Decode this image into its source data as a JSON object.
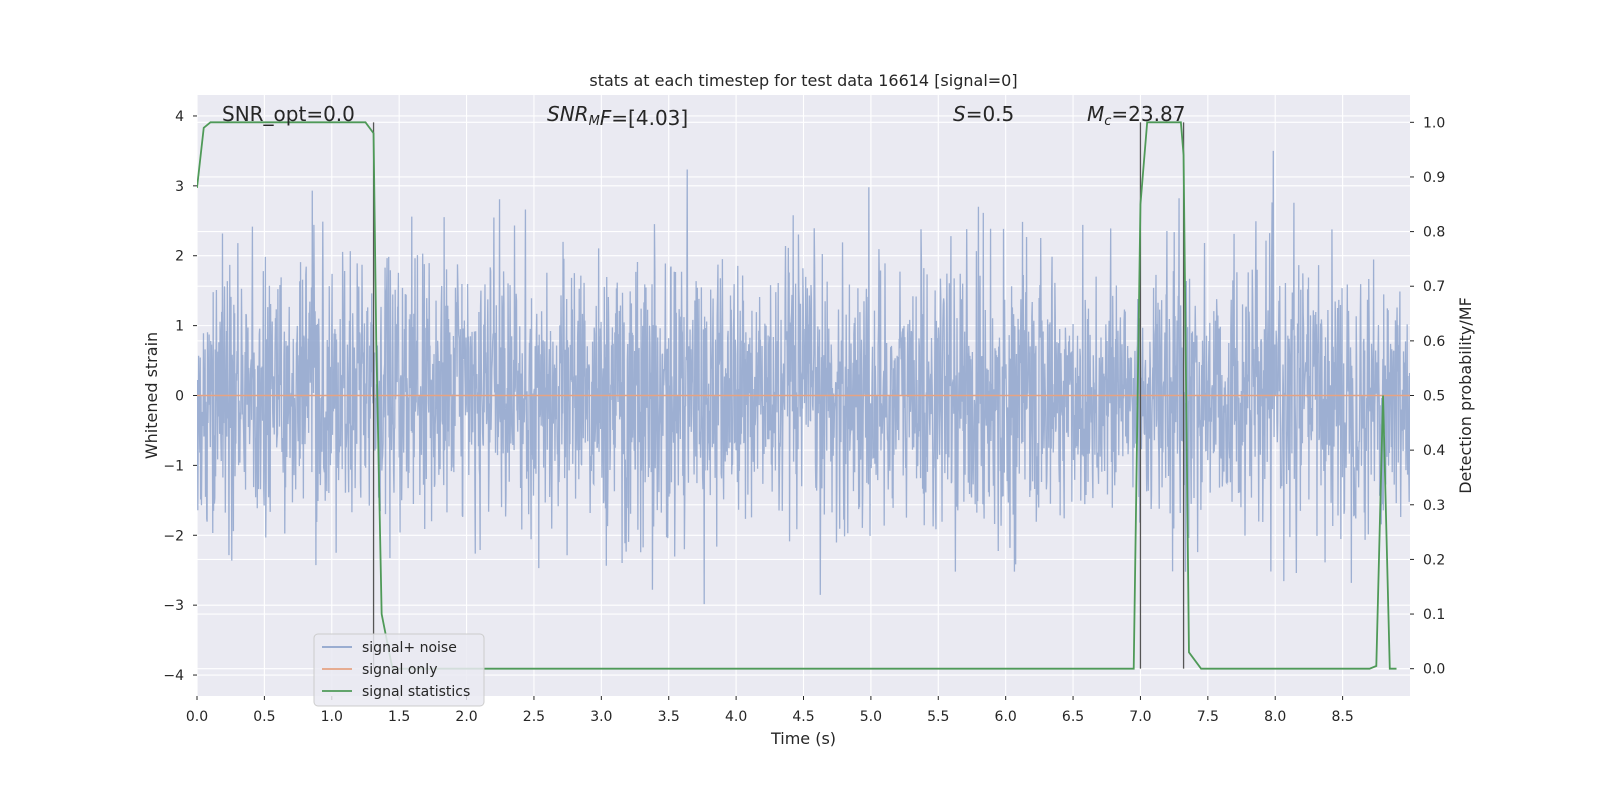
{
  "chart_data": {
    "type": "line",
    "title": "stats at each timestep for test data 16614 [signal=0]",
    "xlabel": "Time (s)",
    "ylabel": "Whitened strain",
    "y2label": "Detection probability/MF",
    "xlim": [
      0.0,
      9.0
    ],
    "ylim": [
      -4.3,
      4.3
    ],
    "y2lim": [
      -0.05,
      1.05
    ],
    "x_ticks": [
      "0.0",
      "0.5",
      "1.0",
      "1.5",
      "2.0",
      "2.5",
      "3.0",
      "3.5",
      "4.0",
      "4.5",
      "5.0",
      "5.5",
      "6.0",
      "6.5",
      "7.0",
      "7.5",
      "8.0",
      "8.5"
    ],
    "y_ticks": [
      "4",
      "3",
      "2",
      "1",
      "0",
      "−1",
      "−2",
      "−3",
      "−4"
    ],
    "y2_ticks": [
      "1.0",
      "0.9",
      "0.8",
      "0.7",
      "0.6",
      "0.5",
      "0.4",
      "0.3",
      "0.2",
      "0.1",
      "0.0"
    ],
    "grid": true,
    "legend_position": "lower-left",
    "annotations": [
      {
        "text": "SNR_opt=0.0"
      },
      {
        "text": "SNRMF=[4.03]",
        "base": "SNR",
        "sub": "M",
        "rest": "F=[4.03]"
      },
      {
        "text": "S=0.5",
        "base": "S",
        "rest": "=0.5"
      },
      {
        "text": "Mc=23.87",
        "base": "M",
        "sub": "c",
        "rest": "=23.87"
      }
    ],
    "series": [
      {
        "name": "signal+ noise",
        "color": "#8fa4cc",
        "description": "whitened strain noise, amplitude ≈ ±2.5 with spikes to ±3.5"
      },
      {
        "name": "signal only",
        "color": "#e5a383",
        "values": "zero"
      },
      {
        "name": "signal statistics",
        "color": "#4f9a58",
        "x": [
          0.0,
          0.05,
          0.1,
          0.2,
          1.0,
          1.25,
          1.31,
          1.33,
          1.37,
          1.45,
          2.0,
          4.0,
          6.0,
          6.95,
          7.0,
          7.05,
          7.3,
          7.32,
          7.36,
          7.45,
          8.0,
          8.7,
          8.75,
          8.8,
          8.85,
          8.9
        ],
        "y": [
          0.88,
          0.99,
          1.0,
          1.0,
          1.0,
          1.0,
          0.98,
          0.6,
          0.1,
          0.0,
          0.0,
          0.0,
          0.0,
          0.0,
          0.85,
          1.0,
          1.0,
          0.94,
          0.03,
          0.0,
          0.0,
          0.0,
          0.005,
          0.5,
          0.0,
          0.0
        ]
      }
    ],
    "vertical_lines": [
      1.31,
      7.0,
      7.32
    ]
  },
  "colors": {
    "background": "#eaeaf2",
    "grid": "#ffffff",
    "noise": "#8fa4cc",
    "signal": "#e5a383",
    "stats": "#4f9a58",
    "vline": "#555555"
  }
}
